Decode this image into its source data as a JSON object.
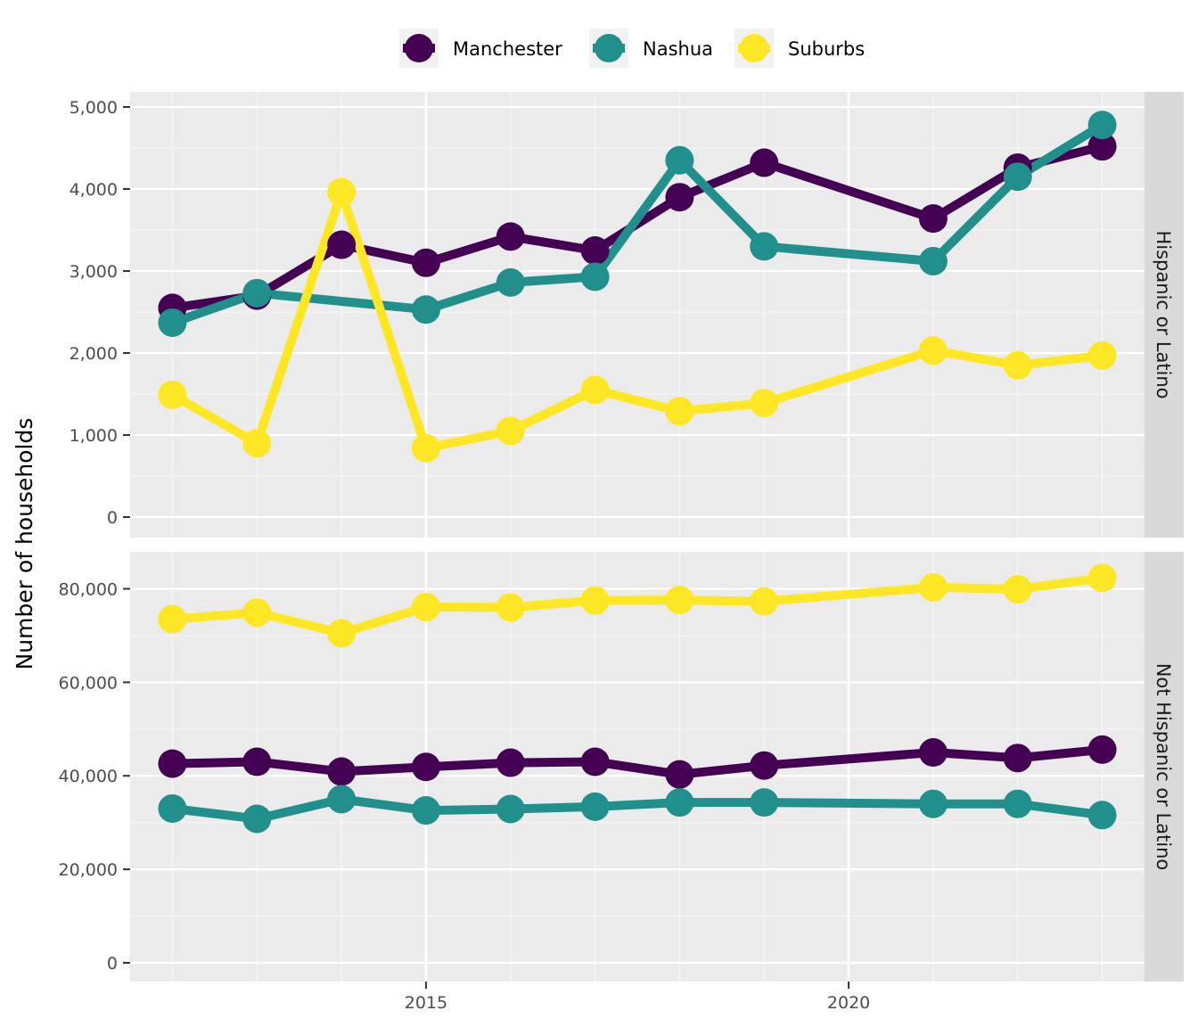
{
  "chart_data": {
    "type": "line",
    "ylabel": "Number of households",
    "xlabel": "",
    "x_ticks": [
      2015,
      2020
    ],
    "xlim": [
      2011.5,
      2023.5
    ],
    "legend": {
      "placement": "top",
      "entries": [
        "Manchester",
        "Nashua",
        "Suburbs"
      ]
    },
    "colors": {
      "Manchester": "#440154",
      "Nashua": "#21908c",
      "Suburbs": "#fde725"
    },
    "facets": [
      {
        "label": "Hispanic or Latino",
        "ylim": [
          -250,
          5000
        ],
        "y_ticks": [
          0,
          1000,
          2000,
          3000,
          4000,
          5000
        ],
        "y_tick_labels": [
          "0",
          "1,000",
          "2,000",
          "3,000",
          "4,000",
          "5,000"
        ],
        "series": [
          {
            "name": "Manchester",
            "x": [
              2012,
              2013,
              2014,
              2015,
              2016,
              2017,
              2018,
              2019,
              2021,
              2022,
              2023
            ],
            "values": [
              2550,
              2700,
              3320,
              3100,
              3420,
              3250,
              3900,
              4320,
              3640,
              4260,
              4520
            ]
          },
          {
            "name": "Nashua",
            "x": [
              2012,
              2013,
              2015,
              2016,
              2017,
              2018,
              2019,
              2021,
              2022,
              2023
            ],
            "values": [
              2370,
              2730,
              2530,
              2860,
              2930,
              4350,
              3300,
              3120,
              4150,
              4780
            ]
          },
          {
            "name": "Suburbs",
            "x": [
              2012,
              2013,
              2014,
              2015,
              2016,
              2017,
              2018,
              2019,
              2021,
              2022,
              2023
            ],
            "values": [
              1490,
              900,
              3960,
              840,
              1050,
              1550,
              1290,
              1390,
              2030,
              1850,
              1970
            ]
          }
        ]
      },
      {
        "label": "Not Hispanic or Latino",
        "ylim": [
          -4000,
          86000
        ],
        "y_ticks": [
          0,
          20000,
          40000,
          60000,
          80000
        ],
        "y_tick_labels": [
          "0",
          "20,000",
          "40,000",
          "60,000",
          "80,000"
        ],
        "series": [
          {
            "name": "Manchester",
            "x": [
              2012,
              2013,
              2014,
              2015,
              2016,
              2017,
              2018,
              2019,
              2021,
              2022,
              2023
            ],
            "values": [
              42600,
              43000,
              40900,
              41900,
              42800,
              43000,
              40300,
              42200,
              45000,
              43800,
              45600
            ]
          },
          {
            "name": "Nashua",
            "x": [
              2012,
              2013,
              2014,
              2015,
              2016,
              2017,
              2018,
              2019,
              2021,
              2022,
              2023
            ],
            "values": [
              33000,
              30800,
              35000,
              32600,
              32900,
              33400,
              34300,
              34300,
              34000,
              34000,
              31600
            ]
          },
          {
            "name": "Suburbs",
            "x": [
              2012,
              2013,
              2014,
              2015,
              2016,
              2017,
              2018,
              2019,
              2021,
              2022,
              2023
            ],
            "values": [
              73500,
              74900,
              70500,
              76100,
              76000,
              77500,
              77600,
              77300,
              80300,
              79900,
              82300
            ]
          }
        ]
      }
    ]
  }
}
